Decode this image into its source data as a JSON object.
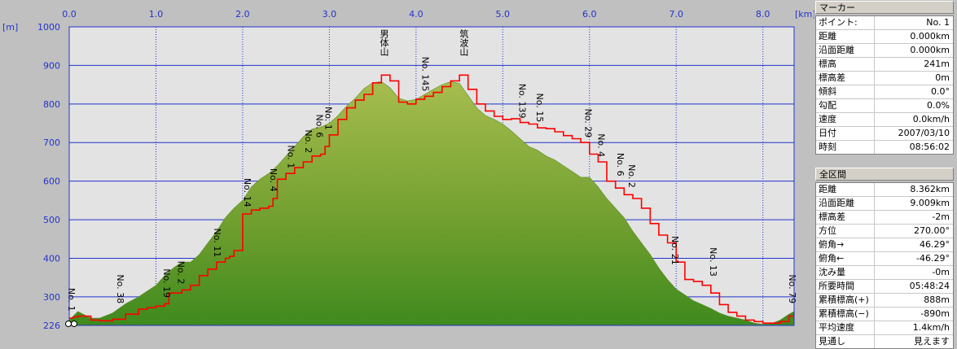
{
  "chart_data": {
    "type": "area",
    "x_unit": "[km]",
    "y_unit": "[m]",
    "xlim": [
      0,
      8.36
    ],
    "ylim": [
      226,
      1000
    ],
    "x_ticks": [
      "0.0",
      "1.0",
      "2.0",
      "3.0",
      "4.0",
      "5.0",
      "6.0",
      "7.0",
      "8.0"
    ],
    "y_ticks": [
      "1000",
      "900",
      "800",
      "700",
      "600",
      "500",
      "400",
      "300",
      "226"
    ],
    "grid": true,
    "series": [
      {
        "color": "#6a9a2e",
        "x": [
          0,
          0.1,
          0.25,
          0.35,
          0.5,
          0.65,
          0.8,
          0.9,
          1.0,
          1.1,
          1.2,
          1.3,
          1.4,
          1.5,
          1.6,
          1.7,
          1.8,
          1.9,
          2.0,
          2.1,
          2.2,
          2.3,
          2.4,
          2.5,
          2.6,
          2.7,
          2.8,
          2.9,
          3.0,
          3.1,
          3.2,
          3.3,
          3.4,
          3.5,
          3.6,
          3.7,
          3.8,
          3.9,
          4.0,
          4.1,
          4.2,
          4.3,
          4.4,
          4.5,
          4.6,
          4.7,
          4.8,
          4.9,
          5.0,
          5.1,
          5.2,
          5.3,
          5.4,
          5.5,
          5.6,
          5.7,
          5.8,
          5.9,
          6.0,
          6.1,
          6.2,
          6.3,
          6.4,
          6.5,
          6.6,
          6.7,
          6.8,
          6.9,
          7.0,
          7.1,
          7.2,
          7.3,
          7.4,
          7.5,
          7.6,
          7.7,
          7.8,
          7.9,
          8.0,
          8.1,
          8.2,
          8.3,
          8.36
        ],
        "y": [
          240,
          262,
          245,
          245,
          258,
          282,
          300,
          315,
          330,
          355,
          375,
          390,
          390,
          410,
          440,
          470,
          505,
          530,
          550,
          585,
          605,
          620,
          640,
          665,
          690,
          715,
          735,
          740,
          750,
          770,
          795,
          815,
          840,
          855,
          858,
          842,
          815,
          808,
          812,
          825,
          838,
          850,
          858,
          853,
          822,
          790,
          770,
          760,
          748,
          730,
          710,
          690,
          680,
          665,
          655,
          640,
          625,
          610,
          610,
          585,
          555,
          530,
          505,
          470,
          440,
          410,
          375,
          345,
          320,
          305,
          290,
          280,
          270,
          258,
          250,
          245,
          240,
          232,
          229,
          231,
          240,
          255,
          262
        ]
      },
      {
        "color": "#ff0000",
        "x": [
          0,
          0.05,
          0.1,
          0.25,
          0.35,
          0.5,
          0.65,
          0.8,
          0.9,
          1.0,
          1.1,
          1.15,
          1.3,
          1.4,
          1.5,
          1.6,
          1.7,
          1.8,
          1.85,
          1.9,
          2.0,
          2.1,
          2.2,
          2.3,
          2.35,
          2.4,
          2.5,
          2.6,
          2.7,
          2.8,
          2.9,
          2.95,
          3.0,
          3.1,
          3.2,
          3.3,
          3.4,
          3.5,
          3.6,
          3.7,
          3.8,
          3.9,
          4.0,
          4.1,
          4.2,
          4.3,
          4.4,
          4.5,
          4.6,
          4.7,
          4.8,
          4.9,
          5.0,
          5.1,
          5.2,
          5.3,
          5.4,
          5.5,
          5.6,
          5.7,
          5.8,
          5.9,
          6.0,
          6.1,
          6.2,
          6.3,
          6.4,
          6.5,
          6.6,
          6.7,
          6.8,
          6.9,
          7.0,
          7.1,
          7.2,
          7.3,
          7.4,
          7.5,
          7.6,
          7.7,
          7.8,
          7.9,
          8.0,
          8.1,
          8.2,
          8.3,
          8.36
        ],
        "y": [
          245,
          248,
          250,
          240,
          238,
          242,
          255,
          268,
          272,
          276,
          282,
          310,
          318,
          330,
          355,
          372,
          390,
          400,
          405,
          420,
          515,
          525,
          530,
          535,
          555,
          605,
          620,
          635,
          650,
          665,
          670,
          690,
          720,
          760,
          790,
          810,
          825,
          855,
          875,
          860,
          805,
          800,
          812,
          820,
          830,
          845,
          860,
          875,
          838,
          800,
          782,
          768,
          760,
          762,
          752,
          748,
          738,
          736,
          728,
          718,
          710,
          700,
          670,
          650,
          600,
          582,
          565,
          555,
          530,
          490,
          460,
          440,
          390,
          345,
          340,
          330,
          310,
          280,
          260,
          250,
          240,
          236,
          232,
          232,
          236,
          250,
          260
        ],
        "stepped": true
      }
    ],
    "peaks": [
      {
        "label": "男体山",
        "x": 3.63
      },
      {
        "label": "筑波山",
        "x": 4.55
      }
    ],
    "annotations": [
      {
        "label": "No. 1",
        "x": 0.02,
        "y": 250
      },
      {
        "label": "No. 38",
        "x": 0.58,
        "y": 270
      },
      {
        "label": "No. 19",
        "x": 1.12,
        "y": 285
      },
      {
        "label": "No. 2",
        "x": 1.28,
        "y": 320
      },
      {
        "label": "No. 11",
        "x": 1.7,
        "y": 390
      },
      {
        "label": "No. 14",
        "x": 2.05,
        "y": 520
      },
      {
        "label": "No. 4",
        "x": 2.35,
        "y": 560
      },
      {
        "label": "No. 1",
        "x": 2.55,
        "y": 620
      },
      {
        "label": "No. 2",
        "x": 2.75,
        "y": 660
      },
      {
        "label": "No. 6",
        "x": 2.88,
        "y": 700
      },
      {
        "label": "No. 1",
        "x": 2.98,
        "y": 720
      },
      {
        "label": "No. 145",
        "x": 4.1,
        "y": 820
      },
      {
        "label": "No. 139",
        "x": 5.22,
        "y": 750
      },
      {
        "label": "No. 15",
        "x": 5.42,
        "y": 740
      },
      {
        "label": "No. 29",
        "x": 5.98,
        "y": 700
      },
      {
        "label": "No. 4",
        "x": 6.13,
        "y": 650
      },
      {
        "label": "No. 6",
        "x": 6.35,
        "y": 600
      },
      {
        "label": "No. 2",
        "x": 6.48,
        "y": 570
      },
      {
        "label": "No. 21",
        "x": 6.98,
        "y": 370
      },
      {
        "label": "No. 13",
        "x": 7.42,
        "y": 340
      },
      {
        "label": "No. 79",
        "x": 8.33,
        "y": 270
      }
    ]
  },
  "marker_panel": {
    "title": "マーカー",
    "rows": [
      {
        "k": "ポイント:",
        "v": "No. 1"
      },
      {
        "k": "距離",
        "v": "0.000km"
      },
      {
        "k": "沿面距離",
        "v": "0.000km"
      },
      {
        "k": "標高",
        "v": "241m"
      },
      {
        "k": "標高差",
        "v": "0m"
      },
      {
        "k": "傾斜",
        "v": "0.0°"
      },
      {
        "k": "勾配",
        "v": "0.0%"
      },
      {
        "k": "速度",
        "v": "0.0km/h"
      },
      {
        "k": "日付",
        "v": "2007/03/10"
      },
      {
        "k": "時刻",
        "v": "08:56:02"
      }
    ]
  },
  "total_panel": {
    "title": "全区間",
    "rows": [
      {
        "k": "距離",
        "v": "8.362km"
      },
      {
        "k": "沿面距離",
        "v": "9.009km"
      },
      {
        "k": "標高差",
        "v": "-2m"
      },
      {
        "k": "方位",
        "v": "270.00°"
      },
      {
        "k": "俯角→",
        "v": "46.29°"
      },
      {
        "k": "俯角←",
        "v": "-46.29°"
      },
      {
        "k": "沈み量",
        "v": "-0m"
      },
      {
        "k": "所要時間",
        "v": "05:48:24"
      },
      {
        "k": "累積標高(+)",
        "v": "888m"
      },
      {
        "k": "累積標高(−)",
        "v": "-890m"
      },
      {
        "k": "平均速度",
        "v": "1.4km/h"
      },
      {
        "k": "見通し",
        "v": "見えます"
      }
    ]
  }
}
